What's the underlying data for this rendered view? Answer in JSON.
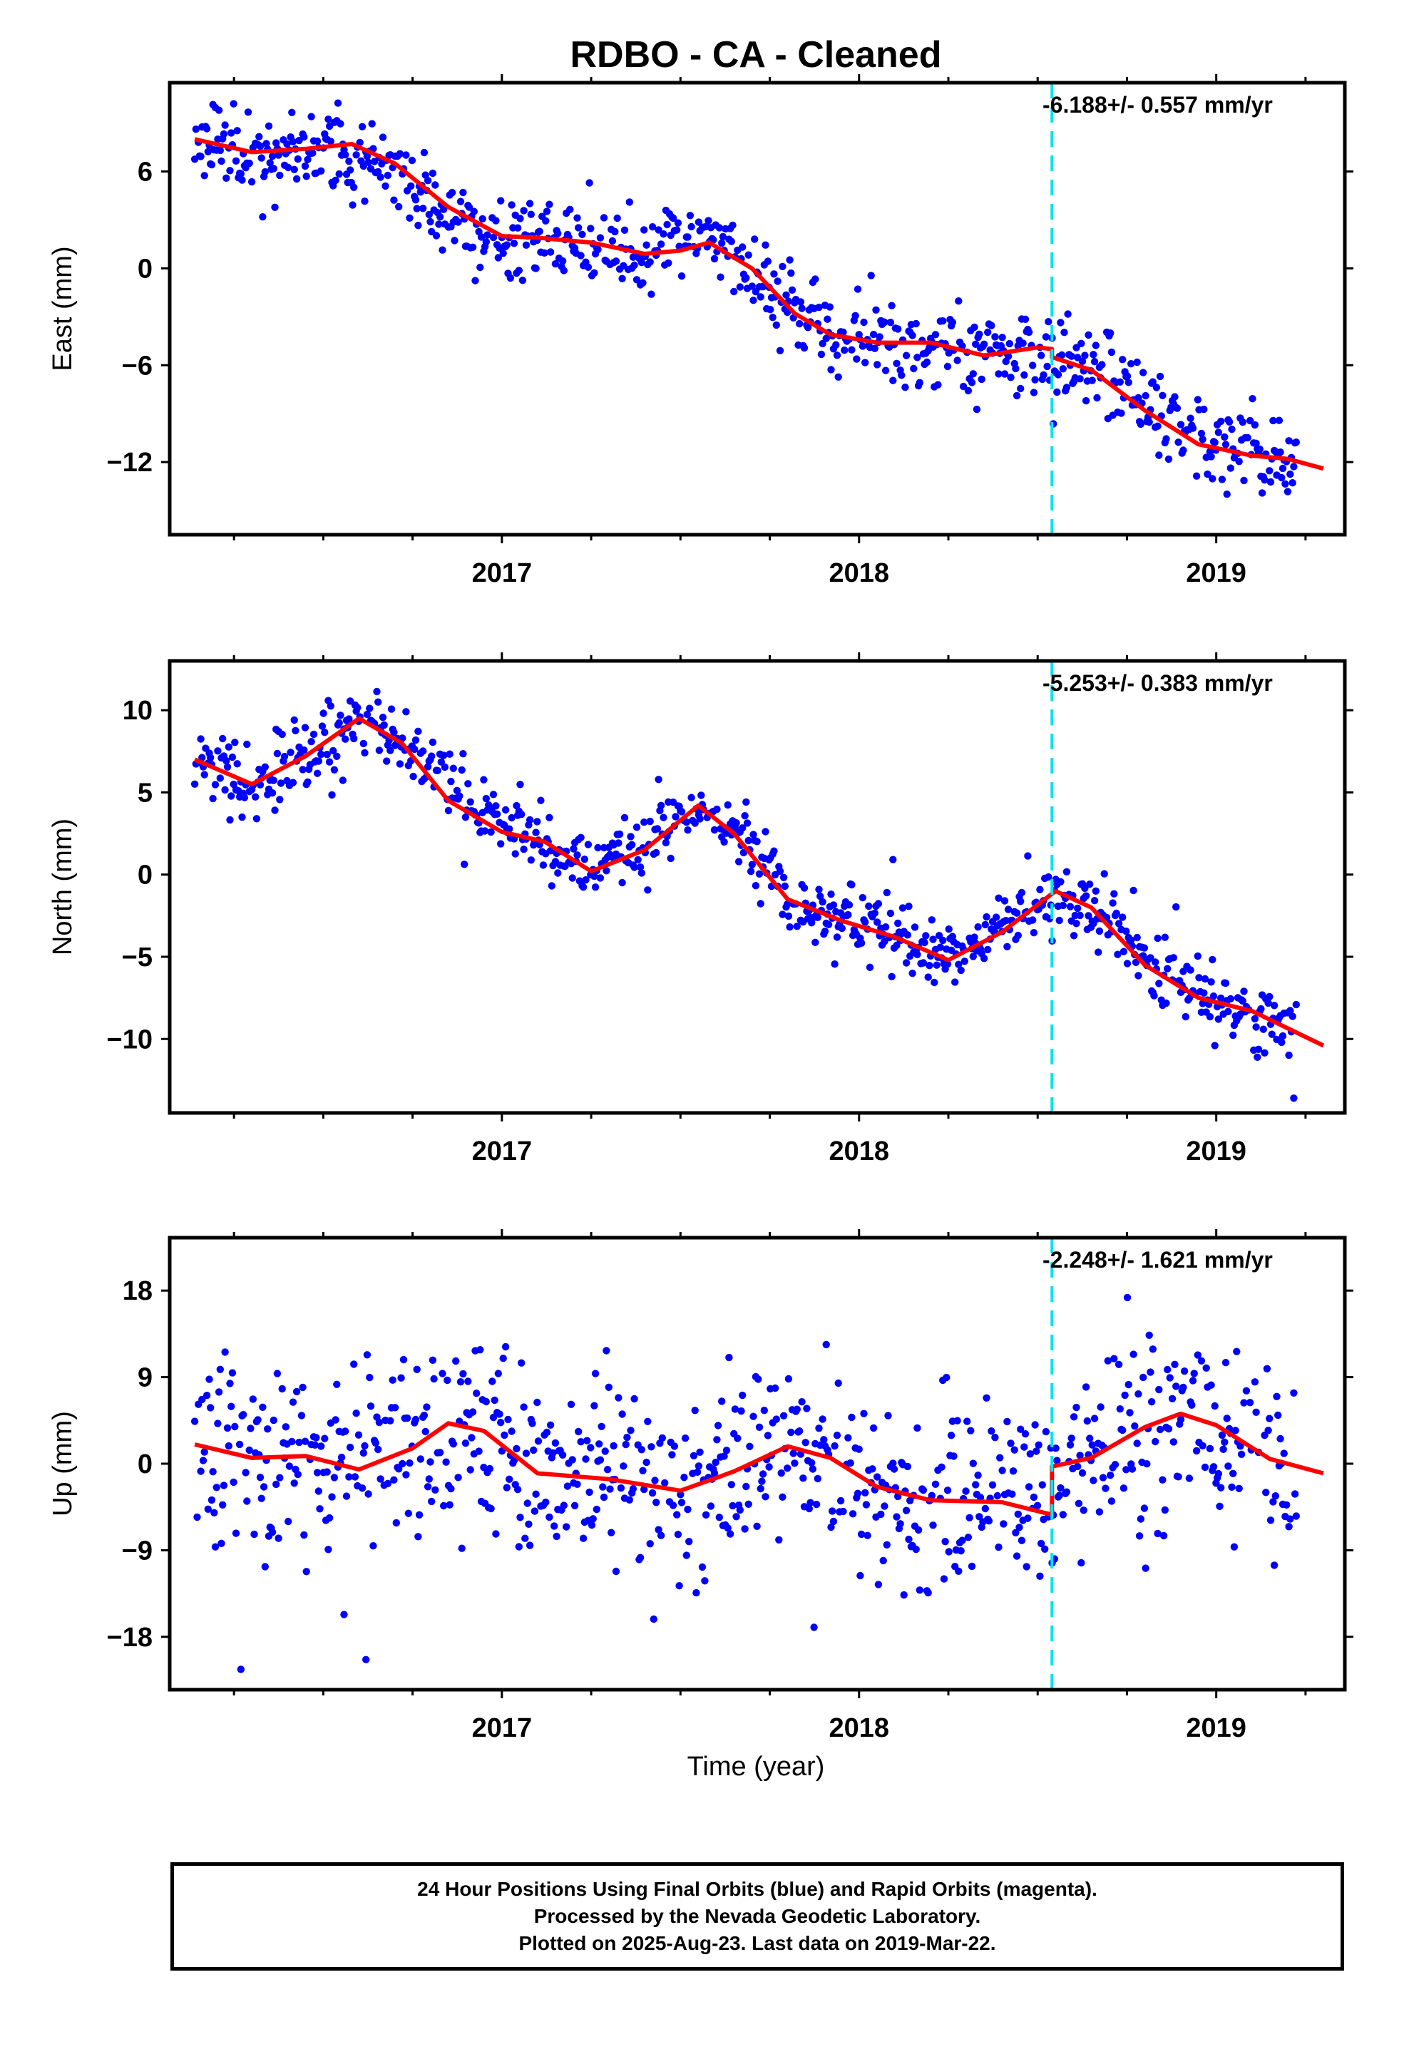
{
  "title": "RDBO  - CA - Cleaned",
  "xlabel": "Time (year)",
  "colors": {
    "data": "#0000ff",
    "model": "#ff0000",
    "event_line": "#00e5ee"
  },
  "footer": {
    "line1": "24 Hour Positions Using Final Orbits (blue) and Rapid Orbits (magenta).",
    "line2": "Processed by the Nevada Geodetic Laboratory.",
    "line3": "Plotted on 2025-Aug-23. Last data on 2019-Mar-22."
  },
  "chart_data": [
    {
      "type": "scatter",
      "component": "East",
      "ylabel": "East (mm)",
      "rate_text": "-6.188+/- 0.557 mm/yr",
      "xlim": [
        2016.07,
        2019.36
      ],
      "ylim": [
        -16.5,
        11.5
      ],
      "yticks": [
        6,
        0,
        -6,
        -12
      ],
      "xticks": [
        2017,
        2018,
        2019
      ],
      "event_line_x": 2018.54,
      "model_curve": [
        [
          2016.14,
          8.0
        ],
        [
          2016.3,
          7.2
        ],
        [
          2016.45,
          7.4
        ],
        [
          2016.58,
          7.7
        ],
        [
          2016.7,
          6.5
        ],
        [
          2016.85,
          3.8
        ],
        [
          2017.0,
          2.0
        ],
        [
          2017.1,
          1.9
        ],
        [
          2017.25,
          1.6
        ],
        [
          2017.4,
          0.9
        ],
        [
          2017.5,
          1.1
        ],
        [
          2017.58,
          1.6
        ],
        [
          2017.7,
          0.0
        ],
        [
          2017.82,
          -2.8
        ],
        [
          2017.92,
          -4.1
        ],
        [
          2018.05,
          -4.6
        ],
        [
          2018.2,
          -4.6
        ],
        [
          2018.35,
          -5.4
        ],
        [
          2018.5,
          -4.9
        ],
        [
          2018.54,
          -5.0
        ],
        [
          2018.54,
          -5.5
        ],
        [
          2018.65,
          -6.3
        ],
        [
          2018.8,
          -8.8
        ],
        [
          2018.95,
          -10.9
        ],
        [
          2019.1,
          -11.6
        ],
        [
          2019.2,
          -11.8
        ],
        [
          2019.3,
          -12.4
        ]
      ],
      "anchors": [
        [
          2016.14,
          8.0
        ],
        [
          2016.3,
          6.8
        ],
        [
          2016.5,
          7.4
        ],
        [
          2016.7,
          6.2
        ],
        [
          2016.85,
          3.6
        ],
        [
          2017.0,
          1.9
        ],
        [
          2017.2,
          1.7
        ],
        [
          2017.35,
          1.0
        ],
        [
          2017.55,
          2.0
        ],
        [
          2017.7,
          0.0
        ],
        [
          2017.85,
          -3.2
        ],
        [
          2018.0,
          -4.4
        ],
        [
          2018.2,
          -4.8
        ],
        [
          2018.4,
          -5.2
        ],
        [
          2018.54,
          -5.3
        ],
        [
          2018.7,
          -7.0
        ],
        [
          2018.9,
          -9.8
        ],
        [
          2019.1,
          -11.4
        ],
        [
          2019.3,
          -12.4
        ]
      ],
      "noise": 1.3,
      "seed": 11
    },
    {
      "type": "scatter",
      "component": "North",
      "ylabel": "North (mm)",
      "rate_text": "-5.253+/- 0.383 mm/yr",
      "xlim": [
        2016.07,
        2019.36
      ],
      "ylim": [
        -14.5,
        13.0
      ],
      "yticks": [
        10,
        5,
        0,
        -5,
        -10
      ],
      "xticks": [
        2017,
        2018,
        2019
      ],
      "event_line_x": 2018.54,
      "model_curve": [
        [
          2016.14,
          7.0
        ],
        [
          2016.3,
          5.5
        ],
        [
          2016.45,
          7.2
        ],
        [
          2016.6,
          9.5
        ],
        [
          2016.72,
          8.0
        ],
        [
          2016.85,
          4.5
        ],
        [
          2017.0,
          2.6
        ],
        [
          2017.12,
          2.0
        ],
        [
          2017.25,
          0.2
        ],
        [
          2017.4,
          1.5
        ],
        [
          2017.55,
          4.2
        ],
        [
          2017.65,
          2.5
        ],
        [
          2017.8,
          -1.5
        ],
        [
          2017.95,
          -2.8
        ],
        [
          2018.1,
          -3.8
        ],
        [
          2018.25,
          -5.2
        ],
        [
          2018.4,
          -3.5
        ],
        [
          2018.55,
          -1.0
        ],
        [
          2018.65,
          -2.0
        ],
        [
          2018.8,
          -5.5
        ],
        [
          2018.95,
          -7.5
        ],
        [
          2019.1,
          -8.3
        ],
        [
          2019.3,
          -10.4
        ]
      ],
      "anchors": [
        [
          2016.14,
          6.8
        ],
        [
          2016.3,
          5.3
        ],
        [
          2016.45,
          7.3
        ],
        [
          2016.6,
          9.6
        ],
        [
          2016.75,
          7.8
        ],
        [
          2016.9,
          4.0
        ],
        [
          2017.0,
          2.8
        ],
        [
          2017.15,
          1.8
        ],
        [
          2017.25,
          0.1
        ],
        [
          2017.4,
          1.7
        ],
        [
          2017.55,
          4.3
        ],
        [
          2017.68,
          2.2
        ],
        [
          2017.82,
          -1.8
        ],
        [
          2018.0,
          -3.0
        ],
        [
          2018.25,
          -5.2
        ],
        [
          2018.4,
          -3.3
        ],
        [
          2018.55,
          -0.9
        ],
        [
          2018.7,
          -3.0
        ],
        [
          2018.85,
          -6.3
        ],
        [
          2019.0,
          -7.8
        ],
        [
          2019.3,
          -10.4
        ]
      ],
      "noise": 1.0,
      "seed": 23
    },
    {
      "type": "scatter",
      "component": "Up",
      "ylabel": "Up (mm)",
      "rate_text": "-2.248+/- 1.621 mm/yr",
      "xlim": [
        2016.07,
        2019.36
      ],
      "ylim": [
        -23.5,
        23.5
      ],
      "yticks": [
        18,
        9,
        0,
        -9,
        -18
      ],
      "xticks": [
        2017,
        2018,
        2019
      ],
      "event_line_x": 2018.54,
      "model_curve": [
        [
          2016.14,
          2.0
        ],
        [
          2016.3,
          0.6
        ],
        [
          2016.45,
          0.8
        ],
        [
          2016.6,
          -0.6
        ],
        [
          2016.75,
          1.6
        ],
        [
          2016.85,
          4.2
        ],
        [
          2016.95,
          3.4
        ],
        [
          2017.1,
          -1.0
        ],
        [
          2017.3,
          -1.6
        ],
        [
          2017.5,
          -2.8
        ],
        [
          2017.65,
          -0.8
        ],
        [
          2017.8,
          1.8
        ],
        [
          2017.92,
          0.6
        ],
        [
          2018.05,
          -2.4
        ],
        [
          2018.2,
          -3.8
        ],
        [
          2018.4,
          -4.0
        ],
        [
          2018.54,
          -5.3
        ],
        [
          2018.54,
          -0.3
        ],
        [
          2018.65,
          0.6
        ],
        [
          2018.8,
          3.8
        ],
        [
          2018.9,
          5.2
        ],
        [
          2019.0,
          4.0
        ],
        [
          2019.15,
          0.5
        ],
        [
          2019.3,
          -1.0
        ]
      ],
      "anchors": [
        [
          2016.14,
          1.8
        ],
        [
          2016.35,
          0.8
        ],
        [
          2016.55,
          -0.3
        ],
        [
          2016.72,
          1.8
        ],
        [
          2016.88,
          4.2
        ],
        [
          2017.1,
          -0.8
        ],
        [
          2017.35,
          -1.8
        ],
        [
          2017.55,
          -2.6
        ],
        [
          2017.82,
          2.0
        ],
        [
          2018.05,
          -2.6
        ],
        [
          2018.25,
          -3.8
        ],
        [
          2018.54,
          -4.8
        ],
        [
          2018.62,
          0.3
        ],
        [
          2018.9,
          5.0
        ],
        [
          2019.1,
          1.5
        ],
        [
          2019.3,
          -1.0
        ]
      ],
      "noise": 4.8,
      "seed": 37
    }
  ]
}
